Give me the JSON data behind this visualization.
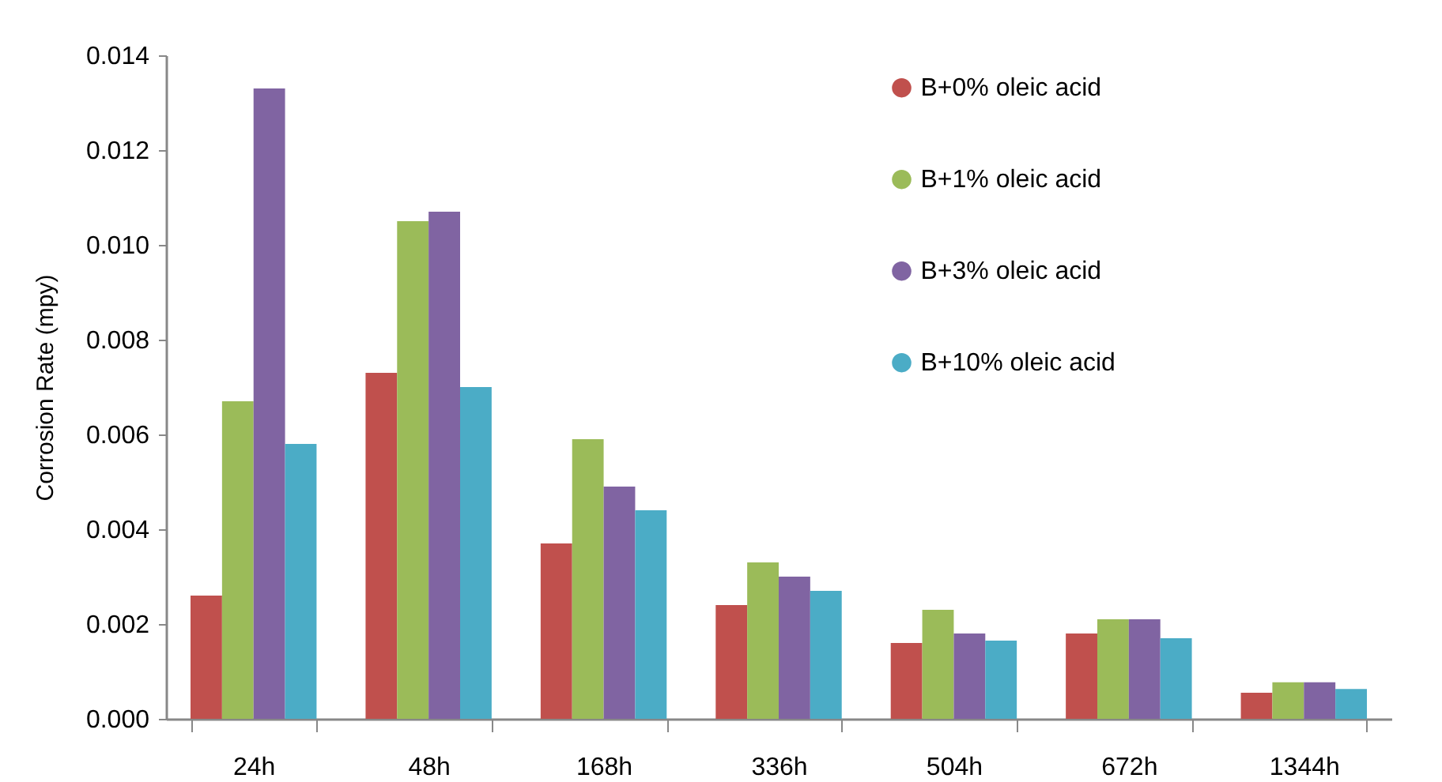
{
  "chart_data": {
    "type": "bar",
    "ylabel": "Corrosion Rate (mpy)",
    "categories": [
      "24h",
      "48h",
      "168h",
      "336h",
      "504h",
      "672h",
      "1344h"
    ],
    "series": [
      {
        "name": "B+0% oleic acid",
        "color": "#c0504d",
        "values": [
          0.0026,
          0.0073,
          0.0037,
          0.0024,
          0.0016,
          0.0018,
          0.00055
        ]
      },
      {
        "name": "B+1% oleic acid",
        "color": "#9bbb59",
        "values": [
          0.0067,
          0.0105,
          0.0059,
          0.0033,
          0.0023,
          0.0021,
          0.00077
        ]
      },
      {
        "name": "B+3% oleic acid",
        "color": "#8064a2",
        "values": [
          0.0133,
          0.0107,
          0.0049,
          0.003,
          0.0018,
          0.0021,
          0.00077
        ]
      },
      {
        "name": "B+10% oleic acid",
        "color": "#4bacc6",
        "values": [
          0.0058,
          0.007,
          0.0044,
          0.0027,
          0.00165,
          0.0017,
          0.00063
        ]
      }
    ],
    "ylim": [
      0,
      0.014
    ],
    "yticks": [
      {
        "value": 0,
        "label": "0.000"
      },
      {
        "value": 0.002,
        "label": "0.002"
      },
      {
        "value": 0.004,
        "label": "0.004"
      },
      {
        "value": 0.006,
        "label": "0.006"
      },
      {
        "value": 0.008,
        "label": "0.008"
      },
      {
        "value": 0.01,
        "label": "0.010"
      },
      {
        "value": 0.012,
        "label": "0.012"
      },
      {
        "value": 0.014,
        "label": "0.014"
      }
    ],
    "grid": false,
    "legend": "top right"
  }
}
